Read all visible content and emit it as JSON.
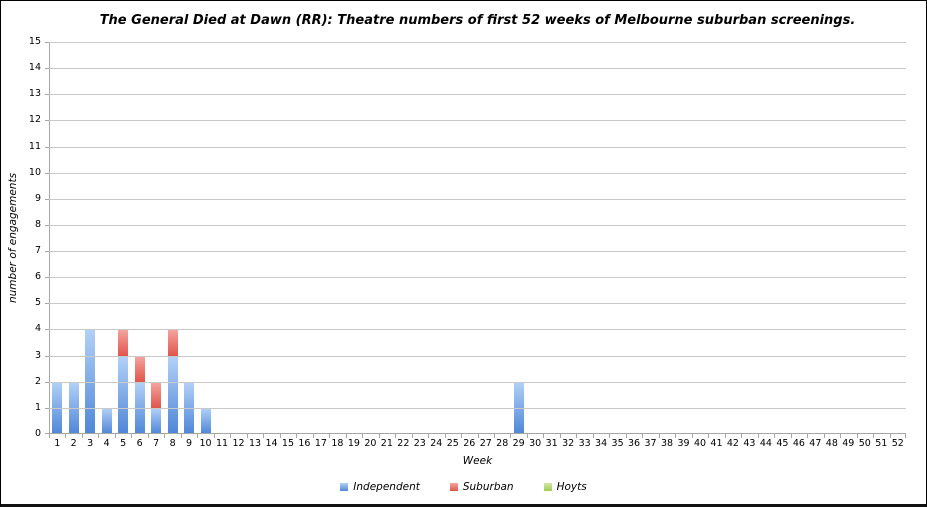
{
  "chart_data": {
    "type": "bar",
    "stacked": true,
    "title": "The General Died at Dawn (RR): Theatre numbers of first 52 weeks of Melbourne suburban screenings.",
    "xlabel": "Week",
    "ylabel": "number of engagements",
    "ylim": [
      0,
      15
    ],
    "y_tick_step": 1,
    "grid": true,
    "legend_position": "bottom",
    "categories": [
      1,
      2,
      3,
      4,
      5,
      6,
      7,
      8,
      9,
      10,
      11,
      12,
      13,
      14,
      15,
      16,
      17,
      18,
      19,
      20,
      21,
      22,
      23,
      24,
      25,
      26,
      27,
      28,
      29,
      30,
      31,
      32,
      33,
      34,
      35,
      36,
      37,
      38,
      39,
      40,
      41,
      42,
      43,
      44,
      45,
      46,
      47,
      48,
      49,
      50,
      51,
      52
    ],
    "series": [
      {
        "name": "Independent",
        "color_light": "#b3d1f7",
        "color_dark": "#4e86d8",
        "values": [
          2,
          2,
          4,
          1,
          3,
          2,
          1,
          3,
          2,
          1,
          0,
          0,
          0,
          0,
          0,
          0,
          0,
          0,
          0,
          0,
          0,
          0,
          0,
          0,
          0,
          0,
          0,
          0,
          2,
          0,
          0,
          0,
          0,
          0,
          0,
          0,
          0,
          0,
          0,
          0,
          0,
          0,
          0,
          0,
          0,
          0,
          0,
          0,
          0,
          0,
          0,
          0
        ]
      },
      {
        "name": "Suburban",
        "color_light": "#f4a6a0",
        "color_dark": "#e0544b",
        "values": [
          0,
          0,
          0,
          0,
          1,
          1,
          1,
          1,
          0,
          0,
          0,
          0,
          0,
          0,
          0,
          0,
          0,
          0,
          0,
          0,
          0,
          0,
          0,
          0,
          0,
          0,
          0,
          0,
          0,
          0,
          0,
          0,
          0,
          0,
          0,
          0,
          0,
          0,
          0,
          0,
          0,
          0,
          0,
          0,
          0,
          0,
          0,
          0,
          0,
          0,
          0,
          0
        ]
      },
      {
        "name": "Hoyts",
        "color_light": "#d2e8a5",
        "color_dark": "#9ccb55",
        "values": [
          0,
          0,
          0,
          0,
          0,
          0,
          0,
          0,
          0,
          0,
          0,
          0,
          0,
          0,
          0,
          0,
          0,
          0,
          0,
          0,
          0,
          0,
          0,
          0,
          0,
          0,
          0,
          0,
          0,
          0,
          0,
          0,
          0,
          0,
          0,
          0,
          0,
          0,
          0,
          0,
          0,
          0,
          0,
          0,
          0,
          0,
          0,
          0,
          0,
          0,
          0,
          0
        ]
      }
    ],
    "colors": {
      "gridline": "#c9c9c9",
      "axis": "#a6a6a6",
      "text": "#000000"
    }
  }
}
